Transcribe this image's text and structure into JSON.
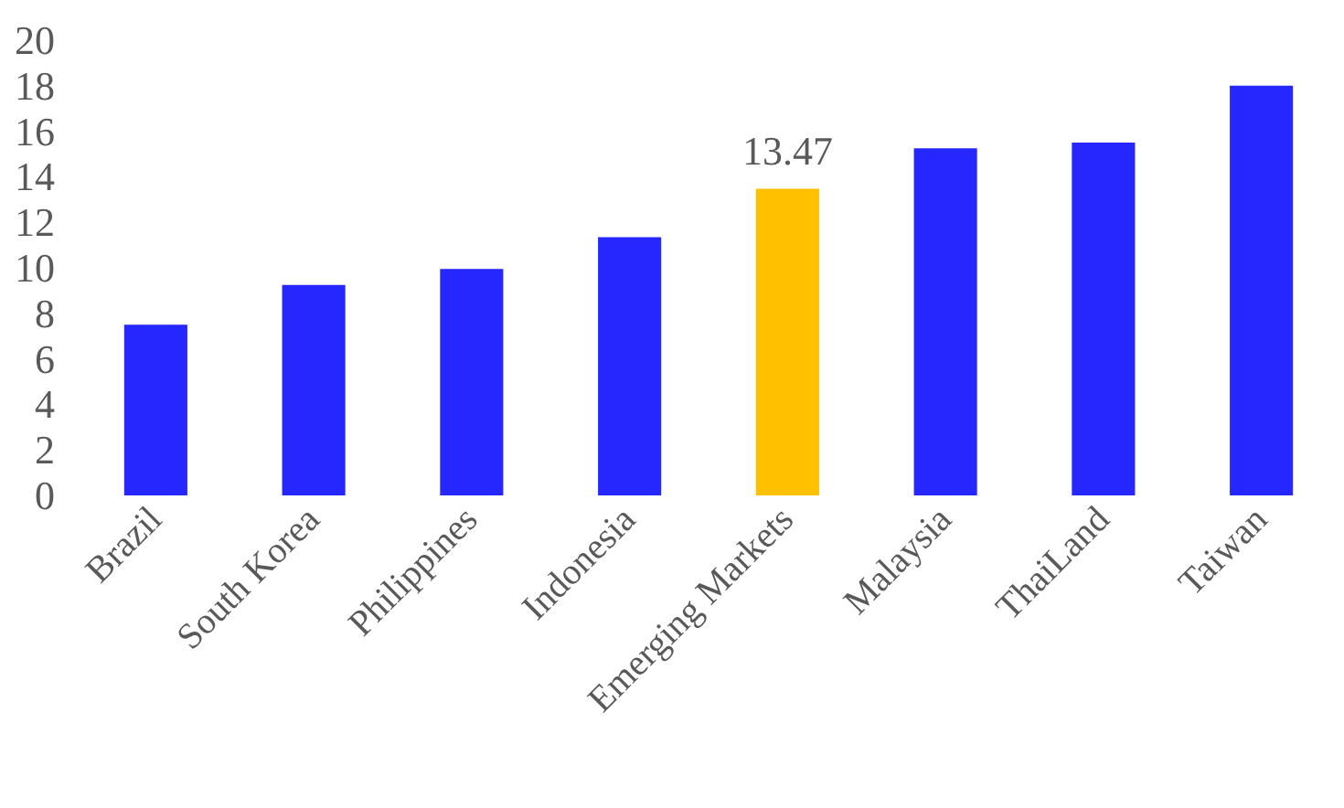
{
  "chart_data": {
    "type": "bar",
    "categories": [
      "Brazil",
      "South Korea",
      "Philippines",
      "Indonesia",
      "Emerging Markets",
      "Malaysia",
      "ThaiLand",
      "Taiwan"
    ],
    "values": [
      7.5,
      9.25,
      9.95,
      11.35,
      13.47,
      15.25,
      15.5,
      18
    ],
    "colors": [
      "#2626ff",
      "#2626ff",
      "#2626ff",
      "#2626ff",
      "#ffc000",
      "#2626ff",
      "#2626ff",
      "#2626ff"
    ],
    "value_labels": [
      null,
      null,
      null,
      null,
      "13.47",
      null,
      null,
      null
    ],
    "ylim": [
      0,
      20
    ],
    "yticks": [
      0,
      2,
      4,
      6,
      8,
      10,
      12,
      14,
      16,
      18,
      20
    ],
    "grid": false
  }
}
